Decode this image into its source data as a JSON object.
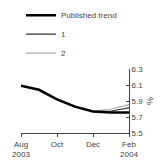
{
  "chart_data": {
    "type": "line",
    "ylabel": "%",
    "categories": [
      "Aug\n2003",
      null,
      "Oct",
      null,
      "Dec",
      null,
      "Feb\n2004"
    ],
    "series": [
      {
        "name": "Published trend",
        "color": "#000000",
        "values": [
          6.09,
          6.04,
          5.92,
          5.83,
          5.77,
          5.755,
          5.755
        ]
      },
      {
        "name": "1",
        "color": "#333333",
        "values": [
          6.09,
          6.04,
          5.92,
          5.83,
          5.77,
          5.775,
          5.815
        ]
      },
      {
        "name": "2",
        "color": "#aaaaaa",
        "values": [
          6.09,
          6.04,
          5.92,
          5.83,
          5.77,
          5.8,
          5.855
        ]
      }
    ],
    "ylim": [
      5.5,
      6.3
    ],
    "yticks": [
      5.5,
      5.7,
      5.9,
      6.1,
      6.3
    ],
    "grid": false,
    "legend": "top"
  }
}
